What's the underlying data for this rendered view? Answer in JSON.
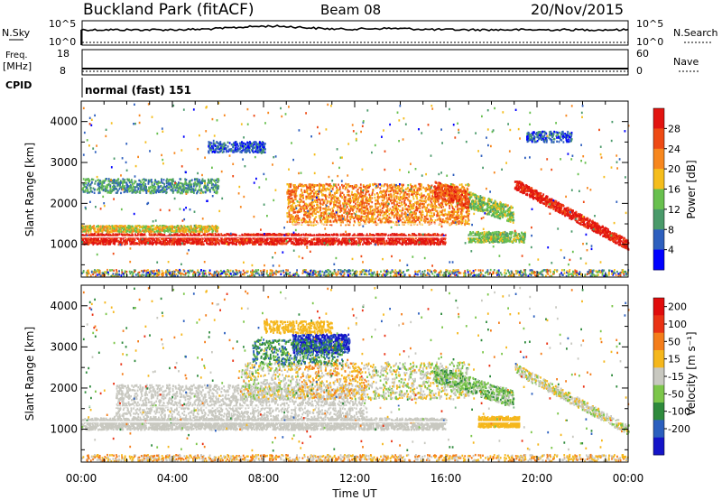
{
  "header": {
    "station": "Buckland Park (fitACF)",
    "beam": "Beam 08",
    "date": "20/Nov/2015"
  },
  "top_panels": {
    "nsky_label": "N.Sky",
    "nsearch_label": "N.Search",
    "noise_ticks": [
      "10^5",
      "10^0"
    ],
    "freq_label": "Freq.",
    "freq_unit": "[MHz]",
    "freq_ticks": [
      "18",
      "8"
    ],
    "nave_label": "Nave",
    "nave_ticks": [
      "60",
      "0"
    ],
    "cpid_label": "CPID",
    "cpid_value": "normal (fast) 151"
  },
  "chart_data": [
    {
      "type": "heatmap",
      "name": "power",
      "ylabel": "Slant Range [km]",
      "ylim": [
        200,
        4500
      ],
      "yticks": [
        1000,
        2000,
        3000,
        4000
      ],
      "xlim": [
        0,
        24
      ],
      "colorbar": {
        "label": "Power [dB]",
        "ticks": [
          "4",
          "8",
          "12",
          "16",
          "20",
          "24",
          "28"
        ],
        "colors": [
          "#0000ff",
          "#2e5fbe",
          "#4a9a6a",
          "#68c04e",
          "#f5bd1c",
          "#f7871e",
          "#ee4a14",
          "#e21410"
        ]
      }
    },
    {
      "type": "heatmap",
      "name": "velocity",
      "ylabel": "Slant Range [km]",
      "ylim": [
        200,
        4500
      ],
      "yticks": [
        1000,
        2000,
        3000,
        4000
      ],
      "xlim": [
        0,
        24
      ],
      "colorbar": {
        "label": "Velocity [m s⁻¹]",
        "ticks": [
          "200",
          "100",
          "50",
          "15",
          "-15",
          "-50",
          "-100",
          "-200"
        ],
        "colors": [
          "#1414c8",
          "#2b5fbe",
          "#2e8a3c",
          "#7cc64a",
          "#c8c8c0",
          "#f5b71c",
          "#f47d1a",
          "#ea3214",
          "#e00c0c"
        ]
      }
    }
  ],
  "xaxis": {
    "label": "Time UT",
    "ticks": [
      "00:00",
      "04:00",
      "08:00",
      "12:00",
      "16:00",
      "20:00",
      "00:00"
    ]
  }
}
